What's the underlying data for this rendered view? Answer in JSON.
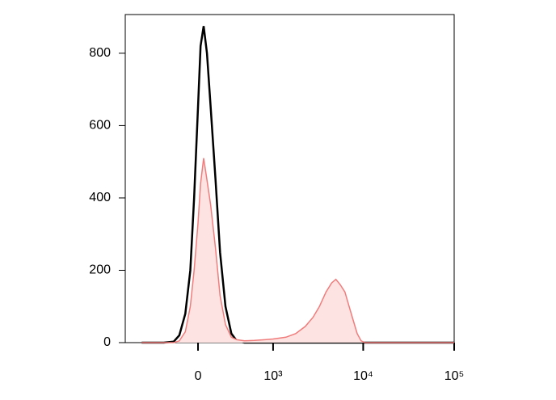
{
  "chart_data": {
    "type": "histogram-overlay",
    "x": [
      -600,
      -300,
      -200,
      -150,
      -100,
      -60,
      -30,
      0,
      20,
      44,
      70,
      100,
      140,
      180,
      230,
      290,
      350,
      450,
      600,
      800,
      1000,
      1400,
      1800,
      2300,
      2800,
      3300,
      3900,
      4500,
      5000,
      5600,
      6300,
      7000,
      7800,
      8600,
      9500,
      10500,
      20000,
      100000
    ],
    "series": [
      {
        "color": "#000000",
        "values": [
          0,
          0,
          3,
          20,
          80,
          200,
          400,
          650,
          820,
          875,
          800,
          650,
          450,
          250,
          100,
          25,
          5,
          0,
          0,
          0,
          0,
          0,
          0,
          0,
          0,
          0,
          0,
          0,
          0,
          0,
          0,
          0,
          0,
          0,
          0,
          0,
          0,
          0
        ]
      },
      {
        "color": "#f07c7c",
        "fill": "#fde3e1",
        "values": [
          0,
          0,
          0,
          5,
          30,
          100,
          200,
          330,
          440,
          510,
          450,
          380,
          260,
          130,
          50,
          15,
          8,
          5,
          6,
          8,
          10,
          15,
          25,
          45,
          70,
          100,
          140,
          165,
          175,
          160,
          140,
          100,
          60,
          25,
          5,
          0,
          0,
          0
        ]
      }
    ],
    "xscale": "biexponential",
    "xlim": [
      -940,
      100000
    ],
    "xticks": [
      0,
      {
        "value": 1000,
        "label": "10³"
      },
      {
        "value": 10000,
        "label": "10⁴"
      },
      {
        "value": 100000,
        "label": "10⁵"
      }
    ],
    "ylim": [
      0,
      907
    ],
    "yticks": [
      0,
      200,
      400,
      600,
      800
    ]
  }
}
